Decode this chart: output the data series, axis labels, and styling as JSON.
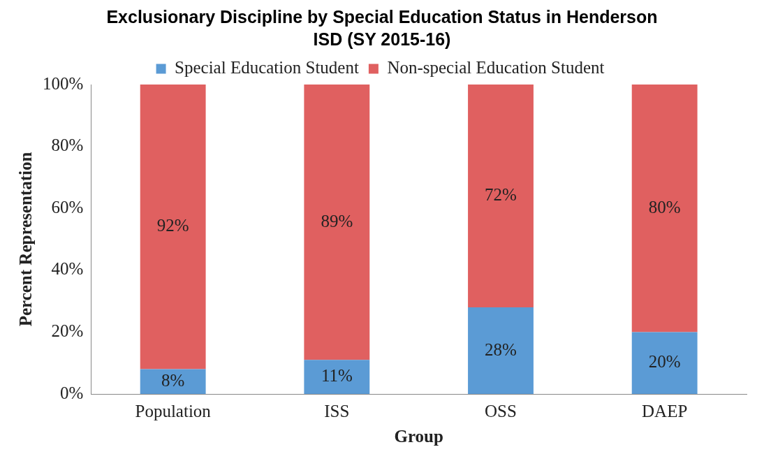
{
  "chart_data": {
    "type": "bar",
    "stacked": true,
    "title": "Exclusionary Discipline by Special Education Status in Henderson ISD (SY 2015-16)",
    "xlabel": "Group",
    "ylabel": "Percent Representation",
    "categories": [
      "Population",
      "ISS",
      "OSS",
      "DAEP"
    ],
    "series": [
      {
        "name": "Special Education Student",
        "color": "#5b9bd5",
        "values": [
          8,
          11,
          28,
          20
        ],
        "value_labels": [
          "8%",
          "11%",
          "28%",
          "20%"
        ]
      },
      {
        "name": "Non-special Education Student",
        "color": "#e06060",
        "values": [
          92,
          89,
          72,
          80
        ],
        "value_labels": [
          "92%",
          "89%",
          "72%",
          "80%"
        ]
      }
    ],
    "ylim": [
      0,
      100
    ],
    "yticks": [
      {
        "value": 0,
        "label": "0%"
      },
      {
        "value": 20,
        "label": "20%"
      },
      {
        "value": 40,
        "label": "40%"
      },
      {
        "value": 60,
        "label": "60%"
      },
      {
        "value": 80,
        "label": "80%"
      },
      {
        "value": 100,
        "label": "100%"
      }
    ],
    "grid": false,
    "legend": "top"
  }
}
